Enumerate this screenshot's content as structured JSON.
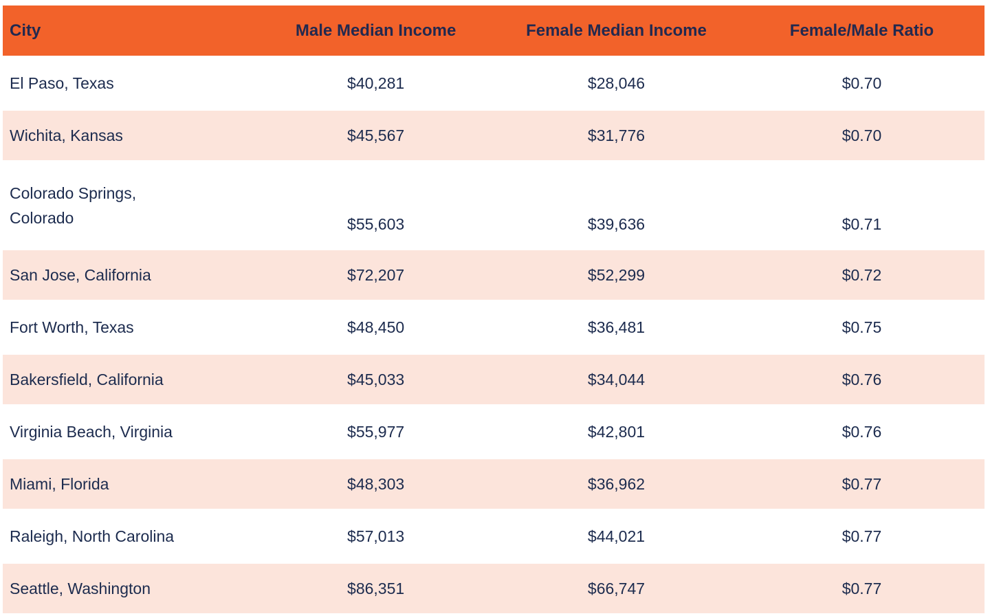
{
  "colors": {
    "header_bg": "#F2622A",
    "row_bg": "#FFFFFF",
    "row_alt_bg": "#FCE4DB",
    "body_text": "#1C2B4E",
    "header_text": "#22294F"
  },
  "table": {
    "columns": [
      {
        "key": "city",
        "label": "City",
        "align": "left"
      },
      {
        "key": "male",
        "label": "Male Median Income",
        "align": "center"
      },
      {
        "key": "female",
        "label": "Female Median Income",
        "align": "center"
      },
      {
        "key": "ratio",
        "label": "Female/Male Ratio",
        "align": "center"
      }
    ],
    "rows": [
      {
        "city": "El Paso, Texas",
        "male": "$40,281",
        "female": "$28,046",
        "ratio": "$0.70"
      },
      {
        "city": "Wichita, Kansas",
        "male": "$45,567",
        "female": "$31,776",
        "ratio": "$0.70"
      },
      {
        "city": "Colorado Springs,\nColorado",
        "male": "$55,603",
        "female": "$39,636",
        "ratio": "$0.71"
      },
      {
        "city": "San Jose, California",
        "male": "$72,207",
        "female": "$52,299",
        "ratio": "$0.72"
      },
      {
        "city": "Fort Worth, Texas",
        "male": "$48,450",
        "female": "$36,481",
        "ratio": "$0.75"
      },
      {
        "city": "Bakersfield, California",
        "male": "$45,033",
        "female": "$34,044",
        "ratio": "$0.76"
      },
      {
        "city": "Virginia Beach, Virginia",
        "male": "$55,977",
        "female": "$42,801",
        "ratio": "$0.76"
      },
      {
        "city": "Miami, Florida",
        "male": "$48,303",
        "female": "$36,962",
        "ratio": "$0.77"
      },
      {
        "city": "Raleigh, North Carolina",
        "male": "$57,013",
        "female": "$44,021",
        "ratio": "$0.77"
      },
      {
        "city": "Seattle, Washington",
        "male": "$86,351",
        "female": "$66,747",
        "ratio": "$0.77"
      }
    ]
  },
  "chart_data": {
    "type": "table",
    "title": "",
    "columns": [
      "City",
      "Male Median Income",
      "Female Median Income",
      "Female/Male Ratio"
    ],
    "rows": [
      [
        "El Paso, Texas",
        40281,
        28046,
        0.7
      ],
      [
        "Wichita, Kansas",
        45567,
        31776,
        0.7
      ],
      [
        "Colorado Springs, Colorado",
        55603,
        39636,
        0.71
      ],
      [
        "San Jose, California",
        72207,
        52299,
        0.72
      ],
      [
        "Fort Worth, Texas",
        48450,
        36481,
        0.75
      ],
      [
        "Bakersfield, California",
        45033,
        34044,
        0.76
      ],
      [
        "Virginia Beach, Virginia",
        55977,
        42801,
        0.76
      ],
      [
        "Miami, Florida",
        48303,
        36962,
        0.77
      ],
      [
        "Raleigh, North Carolina",
        57013,
        44021,
        0.77
      ],
      [
        "Seattle, Washington",
        86351,
        66747,
        0.77
      ]
    ]
  }
}
